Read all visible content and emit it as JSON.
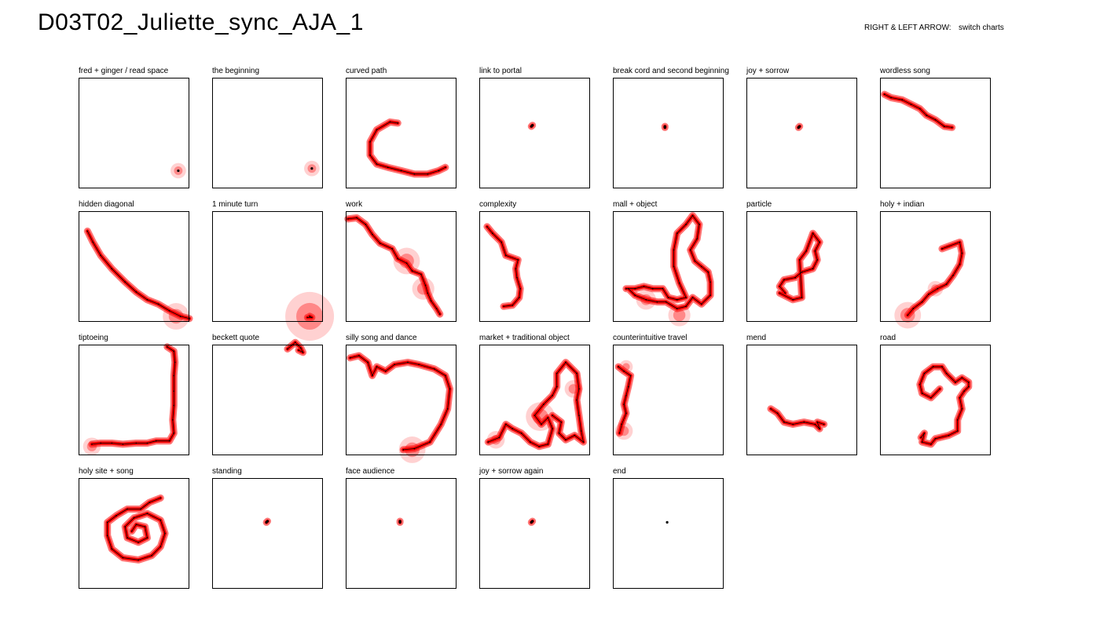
{
  "header": {
    "title": "D03T02_Juliette_sync_AJA_1",
    "hint_key": "RIGHT & LEFT ARROW:",
    "hint_action": "switch charts"
  },
  "colors": {
    "trail": "#ff0000",
    "path": "#000000"
  },
  "chart_data": {
    "type": "scatter",
    "xlim": [
      0,
      1
    ],
    "ylim": [
      0,
      1
    ],
    "panels": [
      {
        "label": "fred + ginger / read space",
        "points": [
          [
            0.9,
            0.16
          ]
        ],
        "blobs": [
          [
            0.9,
            0.16,
            0.07
          ]
        ]
      },
      {
        "label": "the beginning",
        "points": [
          [
            0.9,
            0.18
          ]
        ],
        "blobs": [
          [
            0.9,
            0.18,
            0.07
          ]
        ]
      },
      {
        "label": "curved path",
        "points": [
          [
            0.47,
            0.59
          ],
          [
            0.4,
            0.6
          ],
          [
            0.28,
            0.53
          ],
          [
            0.22,
            0.42
          ],
          [
            0.22,
            0.3
          ],
          [
            0.28,
            0.22
          ],
          [
            0.38,
            0.19
          ],
          [
            0.5,
            0.16
          ],
          [
            0.62,
            0.13
          ],
          [
            0.74,
            0.13
          ],
          [
            0.84,
            0.16
          ],
          [
            0.9,
            0.19
          ]
        ]
      },
      {
        "label": "link to portal",
        "points": [
          [
            0.47,
            0.56
          ],
          [
            0.48,
            0.57
          ]
        ]
      },
      {
        "label": "break cord and second beginning",
        "points": [
          [
            0.47,
            0.55
          ],
          [
            0.47,
            0.56
          ]
        ]
      },
      {
        "label": "joy + sorrow",
        "points": [
          [
            0.47,
            0.55
          ],
          [
            0.48,
            0.56
          ]
        ]
      },
      {
        "label": "wordless song",
        "points": [
          [
            0.04,
            0.85
          ],
          [
            0.1,
            0.82
          ],
          [
            0.2,
            0.8
          ],
          [
            0.28,
            0.76
          ],
          [
            0.36,
            0.72
          ],
          [
            0.42,
            0.66
          ],
          [
            0.5,
            0.62
          ],
          [
            0.58,
            0.56
          ],
          [
            0.65,
            0.55
          ]
        ]
      },
      {
        "label": "hidden diagonal",
        "points": [
          [
            0.08,
            0.82
          ],
          [
            0.13,
            0.72
          ],
          [
            0.2,
            0.6
          ],
          [
            0.3,
            0.48
          ],
          [
            0.42,
            0.36
          ],
          [
            0.52,
            0.27
          ],
          [
            0.62,
            0.2
          ],
          [
            0.72,
            0.16
          ],
          [
            0.82,
            0.1
          ],
          [
            0.92,
            0.05
          ],
          [
            1.0,
            0.03
          ]
        ],
        "blobs": [
          [
            0.88,
            0.05,
            0.12
          ]
        ]
      },
      {
        "label": "1 minute turn",
        "points": [
          [
            0.88,
            0.05
          ],
          [
            0.9,
            0.04
          ],
          [
            0.86,
            0.04
          ]
        ],
        "blobs": [
          [
            0.88,
            0.05,
            0.22
          ]
        ]
      },
      {
        "label": "work",
        "points": [
          [
            0.02,
            0.93
          ],
          [
            0.1,
            0.94
          ],
          [
            0.18,
            0.88
          ],
          [
            0.24,
            0.79
          ],
          [
            0.31,
            0.71
          ],
          [
            0.42,
            0.66
          ],
          [
            0.47,
            0.57
          ],
          [
            0.55,
            0.53
          ],
          [
            0.6,
            0.46
          ],
          [
            0.68,
            0.43
          ],
          [
            0.72,
            0.33
          ],
          [
            0.74,
            0.26
          ],
          [
            0.77,
            0.19
          ],
          [
            0.82,
            0.12
          ],
          [
            0.85,
            0.07
          ]
        ],
        "blobs": [
          [
            0.55,
            0.55,
            0.12
          ],
          [
            0.7,
            0.3,
            0.1
          ]
        ]
      },
      {
        "label": "complexity",
        "points": [
          [
            0.07,
            0.86
          ],
          [
            0.12,
            0.8
          ],
          [
            0.2,
            0.72
          ],
          [
            0.24,
            0.6
          ],
          [
            0.35,
            0.56
          ],
          [
            0.33,
            0.48
          ],
          [
            0.34,
            0.4
          ],
          [
            0.37,
            0.3
          ],
          [
            0.36,
            0.22
          ],
          [
            0.3,
            0.15
          ],
          [
            0.22,
            0.14
          ]
        ]
      },
      {
        "label": "mall + object",
        "points": [
          [
            0.12,
            0.3
          ],
          [
            0.2,
            0.3
          ],
          [
            0.28,
            0.32
          ],
          [
            0.36,
            0.3
          ],
          [
            0.45,
            0.3
          ],
          [
            0.5,
            0.22
          ],
          [
            0.58,
            0.2
          ],
          [
            0.66,
            0.22
          ],
          [
            0.6,
            0.35
          ],
          [
            0.55,
            0.5
          ],
          [
            0.55,
            0.65
          ],
          [
            0.58,
            0.8
          ],
          [
            0.66,
            0.88
          ],
          [
            0.72,
            0.96
          ],
          [
            0.78,
            0.88
          ],
          [
            0.76,
            0.75
          ],
          [
            0.7,
            0.65
          ],
          [
            0.74,
            0.55
          ],
          [
            0.8,
            0.5
          ],
          [
            0.86,
            0.45
          ],
          [
            0.88,
            0.36
          ],
          [
            0.88,
            0.24
          ],
          [
            0.8,
            0.16
          ],
          [
            0.72,
            0.22
          ],
          [
            0.66,
            0.14
          ],
          [
            0.58,
            0.12
          ],
          [
            0.48,
            0.18
          ],
          [
            0.4,
            0.18
          ],
          [
            0.3,
            0.2
          ],
          [
            0.2,
            0.24
          ],
          [
            0.14,
            0.3
          ]
        ],
        "blobs": [
          [
            0.6,
            0.06,
            0.1
          ],
          [
            0.3,
            0.2,
            0.09
          ]
        ]
      },
      {
        "label": "particle",
        "points": [
          [
            0.35,
            0.26
          ],
          [
            0.3,
            0.32
          ],
          [
            0.34,
            0.38
          ],
          [
            0.44,
            0.4
          ],
          [
            0.5,
            0.45
          ],
          [
            0.6,
            0.48
          ],
          [
            0.64,
            0.56
          ],
          [
            0.62,
            0.64
          ],
          [
            0.66,
            0.72
          ],
          [
            0.6,
            0.8
          ],
          [
            0.54,
            0.64
          ],
          [
            0.48,
            0.56
          ],
          [
            0.5,
            0.22
          ],
          [
            0.42,
            0.2
          ],
          [
            0.3,
            0.26
          ]
        ]
      },
      {
        "label": "holy + indian",
        "points": [
          [
            0.25,
            0.06
          ],
          [
            0.3,
            0.12
          ],
          [
            0.38,
            0.18
          ],
          [
            0.44,
            0.25
          ],
          [
            0.52,
            0.3
          ],
          [
            0.6,
            0.34
          ],
          [
            0.66,
            0.42
          ],
          [
            0.72,
            0.52
          ],
          [
            0.74,
            0.62
          ],
          [
            0.72,
            0.72
          ],
          [
            0.56,
            0.66
          ]
        ],
        "blobs": [
          [
            0.25,
            0.06,
            0.12
          ],
          [
            0.5,
            0.3,
            0.07
          ]
        ]
      },
      {
        "label": "tiptoeing",
        "points": [
          [
            0.12,
            0.1
          ],
          [
            0.2,
            0.11
          ],
          [
            0.3,
            0.11
          ],
          [
            0.4,
            0.1
          ],
          [
            0.52,
            0.11
          ],
          [
            0.62,
            0.11
          ],
          [
            0.7,
            0.13
          ],
          [
            0.82,
            0.13
          ],
          [
            0.86,
            0.2
          ],
          [
            0.85,
            0.32
          ],
          [
            0.86,
            0.45
          ],
          [
            0.86,
            0.58
          ],
          [
            0.86,
            0.72
          ],
          [
            0.87,
            0.84
          ],
          [
            0.86,
            0.94
          ],
          [
            0.8,
            0.98
          ]
        ],
        "blobs": [
          [
            0.12,
            0.08,
            0.08
          ]
        ]
      },
      {
        "label": "beckett quote",
        "points": [
          [
            0.68,
            0.96
          ],
          [
            0.75,
            1.02
          ],
          [
            0.8,
            0.97
          ],
          [
            0.82,
            0.93
          ],
          [
            0.78,
            0.95
          ]
        ]
      },
      {
        "label": "silly song and dance",
        "points": [
          [
            0.04,
            0.88
          ],
          [
            0.12,
            0.9
          ],
          [
            0.2,
            0.84
          ],
          [
            0.24,
            0.72
          ],
          [
            0.28,
            0.8
          ],
          [
            0.36,
            0.76
          ],
          [
            0.44,
            0.82
          ],
          [
            0.56,
            0.84
          ],
          [
            0.66,
            0.82
          ],
          [
            0.8,
            0.78
          ],
          [
            0.9,
            0.72
          ],
          [
            0.94,
            0.6
          ],
          [
            0.92,
            0.42
          ],
          [
            0.86,
            0.28
          ],
          [
            0.76,
            0.12
          ],
          [
            0.62,
            0.06
          ],
          [
            0.52,
            0.05
          ]
        ],
        "blobs": [
          [
            0.6,
            0.05,
            0.12
          ]
        ]
      },
      {
        "label": "market + traditional object",
        "points": [
          [
            0.08,
            0.12
          ],
          [
            0.18,
            0.16
          ],
          [
            0.24,
            0.28
          ],
          [
            0.3,
            0.24
          ],
          [
            0.38,
            0.2
          ],
          [
            0.46,
            0.12
          ],
          [
            0.54,
            0.08
          ],
          [
            0.62,
            0.1
          ],
          [
            0.66,
            0.24
          ],
          [
            0.62,
            0.34
          ],
          [
            0.56,
            0.28
          ],
          [
            0.5,
            0.36
          ],
          [
            0.58,
            0.46
          ],
          [
            0.66,
            0.54
          ],
          [
            0.7,
            0.62
          ],
          [
            0.7,
            0.74
          ],
          [
            0.78,
            0.84
          ],
          [
            0.88,
            0.74
          ],
          [
            0.9,
            0.6
          ],
          [
            0.88,
            0.5
          ],
          [
            0.9,
            0.36
          ],
          [
            0.92,
            0.22
          ],
          [
            0.94,
            0.12
          ],
          [
            0.86,
            0.18
          ],
          [
            0.78,
            0.14
          ],
          [
            0.72,
            0.2
          ],
          [
            0.74,
            0.3
          ],
          [
            0.66,
            0.36
          ]
        ],
        "blobs": [
          [
            0.55,
            0.35,
            0.13
          ],
          [
            0.15,
            0.14,
            0.08
          ],
          [
            0.85,
            0.6,
            0.08
          ]
        ]
      },
      {
        "label": "counterintuitive travel",
        "points": [
          [
            0.05,
            0.8
          ],
          [
            0.1,
            0.76
          ],
          [
            0.16,
            0.72
          ],
          [
            0.14,
            0.62
          ],
          [
            0.12,
            0.54
          ],
          [
            0.1,
            0.46
          ],
          [
            0.12,
            0.38
          ],
          [
            0.08,
            0.28
          ],
          [
            0.06,
            0.2
          ]
        ],
        "blobs": [
          [
            0.1,
            0.22,
            0.08
          ],
          [
            0.12,
            0.8,
            0.06
          ]
        ]
      },
      {
        "label": "mend",
        "points": [
          [
            0.22,
            0.42
          ],
          [
            0.28,
            0.38
          ],
          [
            0.34,
            0.3
          ],
          [
            0.42,
            0.28
          ],
          [
            0.52,
            0.3
          ],
          [
            0.62,
            0.28
          ],
          [
            0.66,
            0.24
          ],
          [
            0.64,
            0.3
          ],
          [
            0.7,
            0.28
          ]
        ]
      },
      {
        "label": "road",
        "points": [
          [
            0.37,
            0.16
          ],
          [
            0.4,
            0.2
          ],
          [
            0.38,
            0.12
          ],
          [
            0.46,
            0.1
          ],
          [
            0.5,
            0.15
          ],
          [
            0.62,
            0.18
          ],
          [
            0.7,
            0.22
          ],
          [
            0.7,
            0.32
          ],
          [
            0.74,
            0.42
          ],
          [
            0.72,
            0.52
          ],
          [
            0.76,
            0.58
          ],
          [
            0.8,
            0.62
          ],
          [
            0.8,
            0.66
          ],
          [
            0.74,
            0.7
          ],
          [
            0.68,
            0.66
          ],
          [
            0.6,
            0.74
          ],
          [
            0.56,
            0.8
          ],
          [
            0.48,
            0.8
          ],
          [
            0.4,
            0.74
          ],
          [
            0.36,
            0.64
          ],
          [
            0.38,
            0.56
          ],
          [
            0.46,
            0.52
          ],
          [
            0.54,
            0.6
          ]
        ]
      },
      {
        "label": "holy site + song",
        "points": [
          [
            0.74,
            0.82
          ],
          [
            0.64,
            0.78
          ],
          [
            0.56,
            0.72
          ],
          [
            0.44,
            0.72
          ],
          [
            0.34,
            0.66
          ],
          [
            0.26,
            0.6
          ],
          [
            0.26,
            0.48
          ],
          [
            0.3,
            0.36
          ],
          [
            0.4,
            0.28
          ],
          [
            0.54,
            0.26
          ],
          [
            0.66,
            0.3
          ],
          [
            0.74,
            0.38
          ],
          [
            0.78,
            0.5
          ],
          [
            0.74,
            0.62
          ],
          [
            0.62,
            0.68
          ],
          [
            0.5,
            0.64
          ],
          [
            0.42,
            0.56
          ],
          [
            0.44,
            0.46
          ],
          [
            0.54,
            0.42
          ],
          [
            0.62,
            0.46
          ],
          [
            0.6,
            0.56
          ],
          [
            0.52,
            0.58
          ],
          [
            0.48,
            0.52
          ]
        ]
      },
      {
        "label": "standing",
        "points": [
          [
            0.49,
            0.6
          ],
          [
            0.5,
            0.61
          ]
        ]
      },
      {
        "label": "face audience",
        "points": [
          [
            0.49,
            0.6
          ],
          [
            0.49,
            0.61
          ]
        ]
      },
      {
        "label": "joy + sorrow again",
        "points": [
          [
            0.47,
            0.6
          ],
          [
            0.48,
            0.61
          ]
        ]
      },
      {
        "label": "end",
        "points": [
          [
            0.49,
            0.6
          ]
        ]
      }
    ]
  }
}
